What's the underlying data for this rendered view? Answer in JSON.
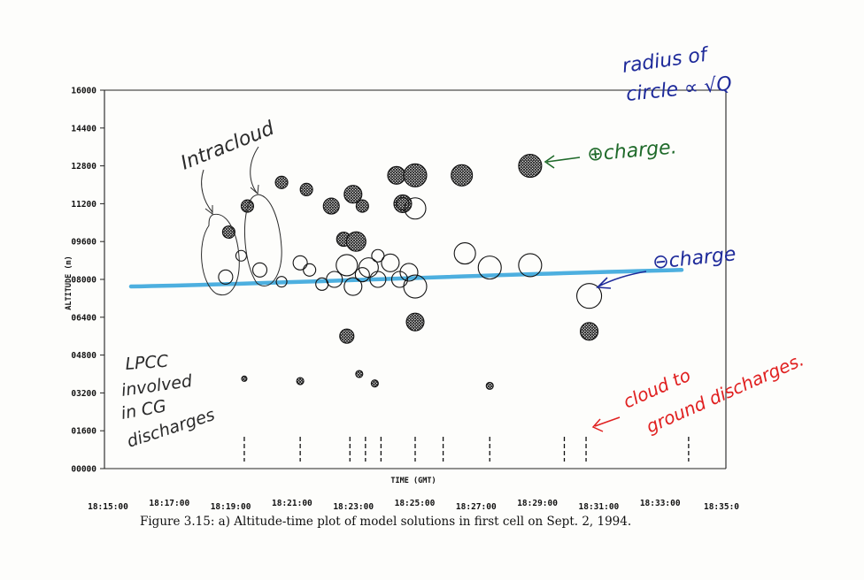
{
  "chart_data": {
    "type": "scatter",
    "xlabel": "TIME (GMT)",
    "ylabel": "ALTITUDE (m)",
    "x_ticks": [
      "18:15:00",
      "18:17:00",
      "18:19:00",
      "18:21:00",
      "18:23:00",
      "18:25:00",
      "18:27:00",
      "18:29:00",
      "18:31:00",
      "18:33:00",
      "18:35:0"
    ],
    "y_ticks": [
      "16000",
      "14400",
      "12800",
      "11200",
      "09600",
      "08000",
      "06400",
      "04800",
      "03200",
      "01600",
      "00000"
    ],
    "xlim_minutes": [
      0,
      20
    ],
    "ylim": [
      0,
      16000
    ],
    "series": [
      {
        "name": "positive",
        "marker": "hatched circle",
        "points": [
          {
            "t": 4.0,
            "alt": 10000,
            "r": 7
          },
          {
            "t": 4.6,
            "alt": 11100,
            "r": 7
          },
          {
            "t": 5.7,
            "alt": 12100,
            "r": 7
          },
          {
            "t": 6.5,
            "alt": 11800,
            "r": 7
          },
          {
            "t": 7.3,
            "alt": 11100,
            "r": 9
          },
          {
            "t": 7.7,
            "alt": 9700,
            "r": 8
          },
          {
            "t": 7.8,
            "alt": 5600,
            "r": 8
          },
          {
            "t": 8.0,
            "alt": 11600,
            "r": 10
          },
          {
            "t": 8.1,
            "alt": 9600,
            "r": 11
          },
          {
            "t": 8.3,
            "alt": 11100,
            "r": 7
          },
          {
            "t": 9.4,
            "alt": 12400,
            "r": 10
          },
          {
            "t": 9.6,
            "alt": 11200,
            "r": 10
          },
          {
            "t": 10.0,
            "alt": 12400,
            "r": 13
          },
          {
            "t": 10.0,
            "alt": 6200,
            "r": 10
          },
          {
            "t": 11.5,
            "alt": 12400,
            "r": 12
          },
          {
            "t": 13.7,
            "alt": 12800,
            "r": 13
          },
          {
            "t": 15.6,
            "alt": 5800,
            "r": 10
          }
        ]
      },
      {
        "name": "negative",
        "marker": "open circle",
        "points": [
          {
            "t": 3.9,
            "alt": 8100,
            "r": 8
          },
          {
            "t": 4.4,
            "alt": 9000,
            "r": 6
          },
          {
            "t": 5.0,
            "alt": 8400,
            "r": 8
          },
          {
            "t": 5.7,
            "alt": 7900,
            "r": 6
          },
          {
            "t": 6.3,
            "alt": 8700,
            "r": 8
          },
          {
            "t": 6.6,
            "alt": 8400,
            "r": 7
          },
          {
            "t": 7.0,
            "alt": 7800,
            "r": 7
          },
          {
            "t": 7.4,
            "alt": 8000,
            "r": 9
          },
          {
            "t": 7.8,
            "alt": 8600,
            "r": 12
          },
          {
            "t": 8.0,
            "alt": 7700,
            "r": 10
          },
          {
            "t": 8.3,
            "alt": 8200,
            "r": 8
          },
          {
            "t": 8.5,
            "alt": 8500,
            "r": 11
          },
          {
            "t": 8.8,
            "alt": 8000,
            "r": 9
          },
          {
            "t": 8.8,
            "alt": 9000,
            "r": 7
          },
          {
            "t": 9.2,
            "alt": 8700,
            "r": 10
          },
          {
            "t": 9.5,
            "alt": 8000,
            "r": 9
          },
          {
            "t": 9.8,
            "alt": 8300,
            "r": 10
          },
          {
            "t": 10.0,
            "alt": 7700,
            "r": 13
          },
          {
            "t": 9.6,
            "alt": 11200,
            "r": 7
          },
          {
            "t": 10.0,
            "alt": 11000,
            "r": 12
          },
          {
            "t": 11.6,
            "alt": 9100,
            "r": 12
          },
          {
            "t": 12.4,
            "alt": 8500,
            "r": 13
          },
          {
            "t": 13.7,
            "alt": 8600,
            "r": 13
          },
          {
            "t": 15.6,
            "alt": 7300,
            "r": 14
          }
        ]
      },
      {
        "name": "lpcc",
        "marker": "small hatched circle",
        "points": [
          {
            "t": 4.5,
            "alt": 3800,
            "r": 3
          },
          {
            "t": 6.3,
            "alt": 3700,
            "r": 4
          },
          {
            "t": 8.2,
            "alt": 4000,
            "r": 4
          },
          {
            "t": 8.7,
            "alt": 3600,
            "r": 4
          },
          {
            "t": 12.4,
            "alt": 3500,
            "r": 4
          }
        ]
      }
    ],
    "cg_strokes_minutes": [
      4.5,
      6.3,
      7.9,
      8.4,
      8.9,
      10.0,
      10.9,
      12.4,
      14.8,
      15.5,
      18.8
    ],
    "negative_charge_line_alt": [
      7700,
      8400
    ],
    "grid": false
  },
  "caption": "Figure 3.15: a) Altitude-time plot of model solutions in first cell on Sept. 2, 1994.",
  "annotations": {
    "radius_line1": "radius of",
    "radius_line2": "circle ∝ √Q",
    "intracloud": "Intracloud",
    "positive_charge": "⊕charge.",
    "negative_charge": "⊖charge",
    "lpcc": "LPCC involved in CG discharges",
    "lpcc_lines": [
      "LPCC",
      "involved",
      "in CG",
      "discharges"
    ],
    "cg_line1": "cloud to",
    "cg_line2": "ground discharges."
  },
  "colors": {
    "ink": "#111111",
    "negative_line": "#3aa6dc",
    "blue_note": "#1e2a9a",
    "green_note": "#1f6a2a",
    "red_note": "#e02020",
    "pencil": "#2a2a2a"
  }
}
